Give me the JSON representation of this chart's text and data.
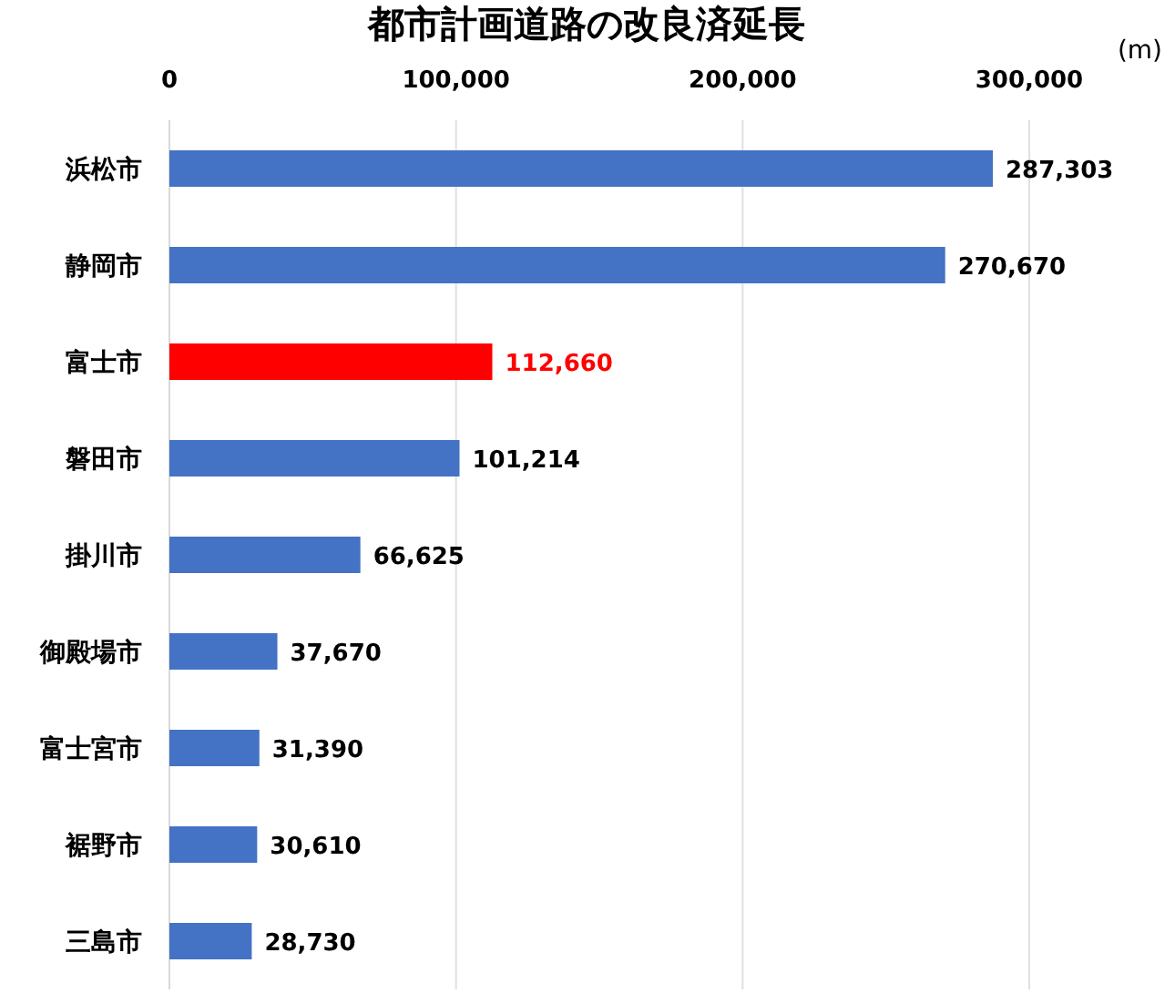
{
  "chart_data": {
    "type": "bar",
    "orientation": "horizontal",
    "title": "都市計画道路の改良済延長",
    "xlabel": "(m)",
    "categories": [
      "浜松市",
      "静岡市",
      "富士市",
      "磐田市",
      "掛川市",
      "御殿場市",
      "富士宮市",
      "裾野市",
      "三島市"
    ],
    "values": [
      287303,
      270670,
      112660,
      101214,
      66625,
      37670,
      31390,
      30610,
      28730
    ],
    "color": "#4472c4",
    "colors": [
      "#4472c4",
      "#4472c4",
      "#ff0000",
      "#4472c4",
      "#4472c4",
      "#4472c4",
      "#4472c4",
      "#4472c4",
      "#4472c4"
    ],
    "xlim": [
      0,
      300000
    ],
    "xticks": [
      {
        "value": 0,
        "label": "0"
      },
      {
        "value": 100000,
        "label": "100,000"
      },
      {
        "value": 200000,
        "label": "200,000"
      },
      {
        "value": 300000,
        "label": "300,000"
      }
    ],
    "value_labels": [
      "287,303",
      "270,670",
      "112,660",
      "101,214",
      "66,625",
      "37,670",
      "31,390",
      "30,610",
      "28,730"
    ],
    "grid": "x"
  }
}
